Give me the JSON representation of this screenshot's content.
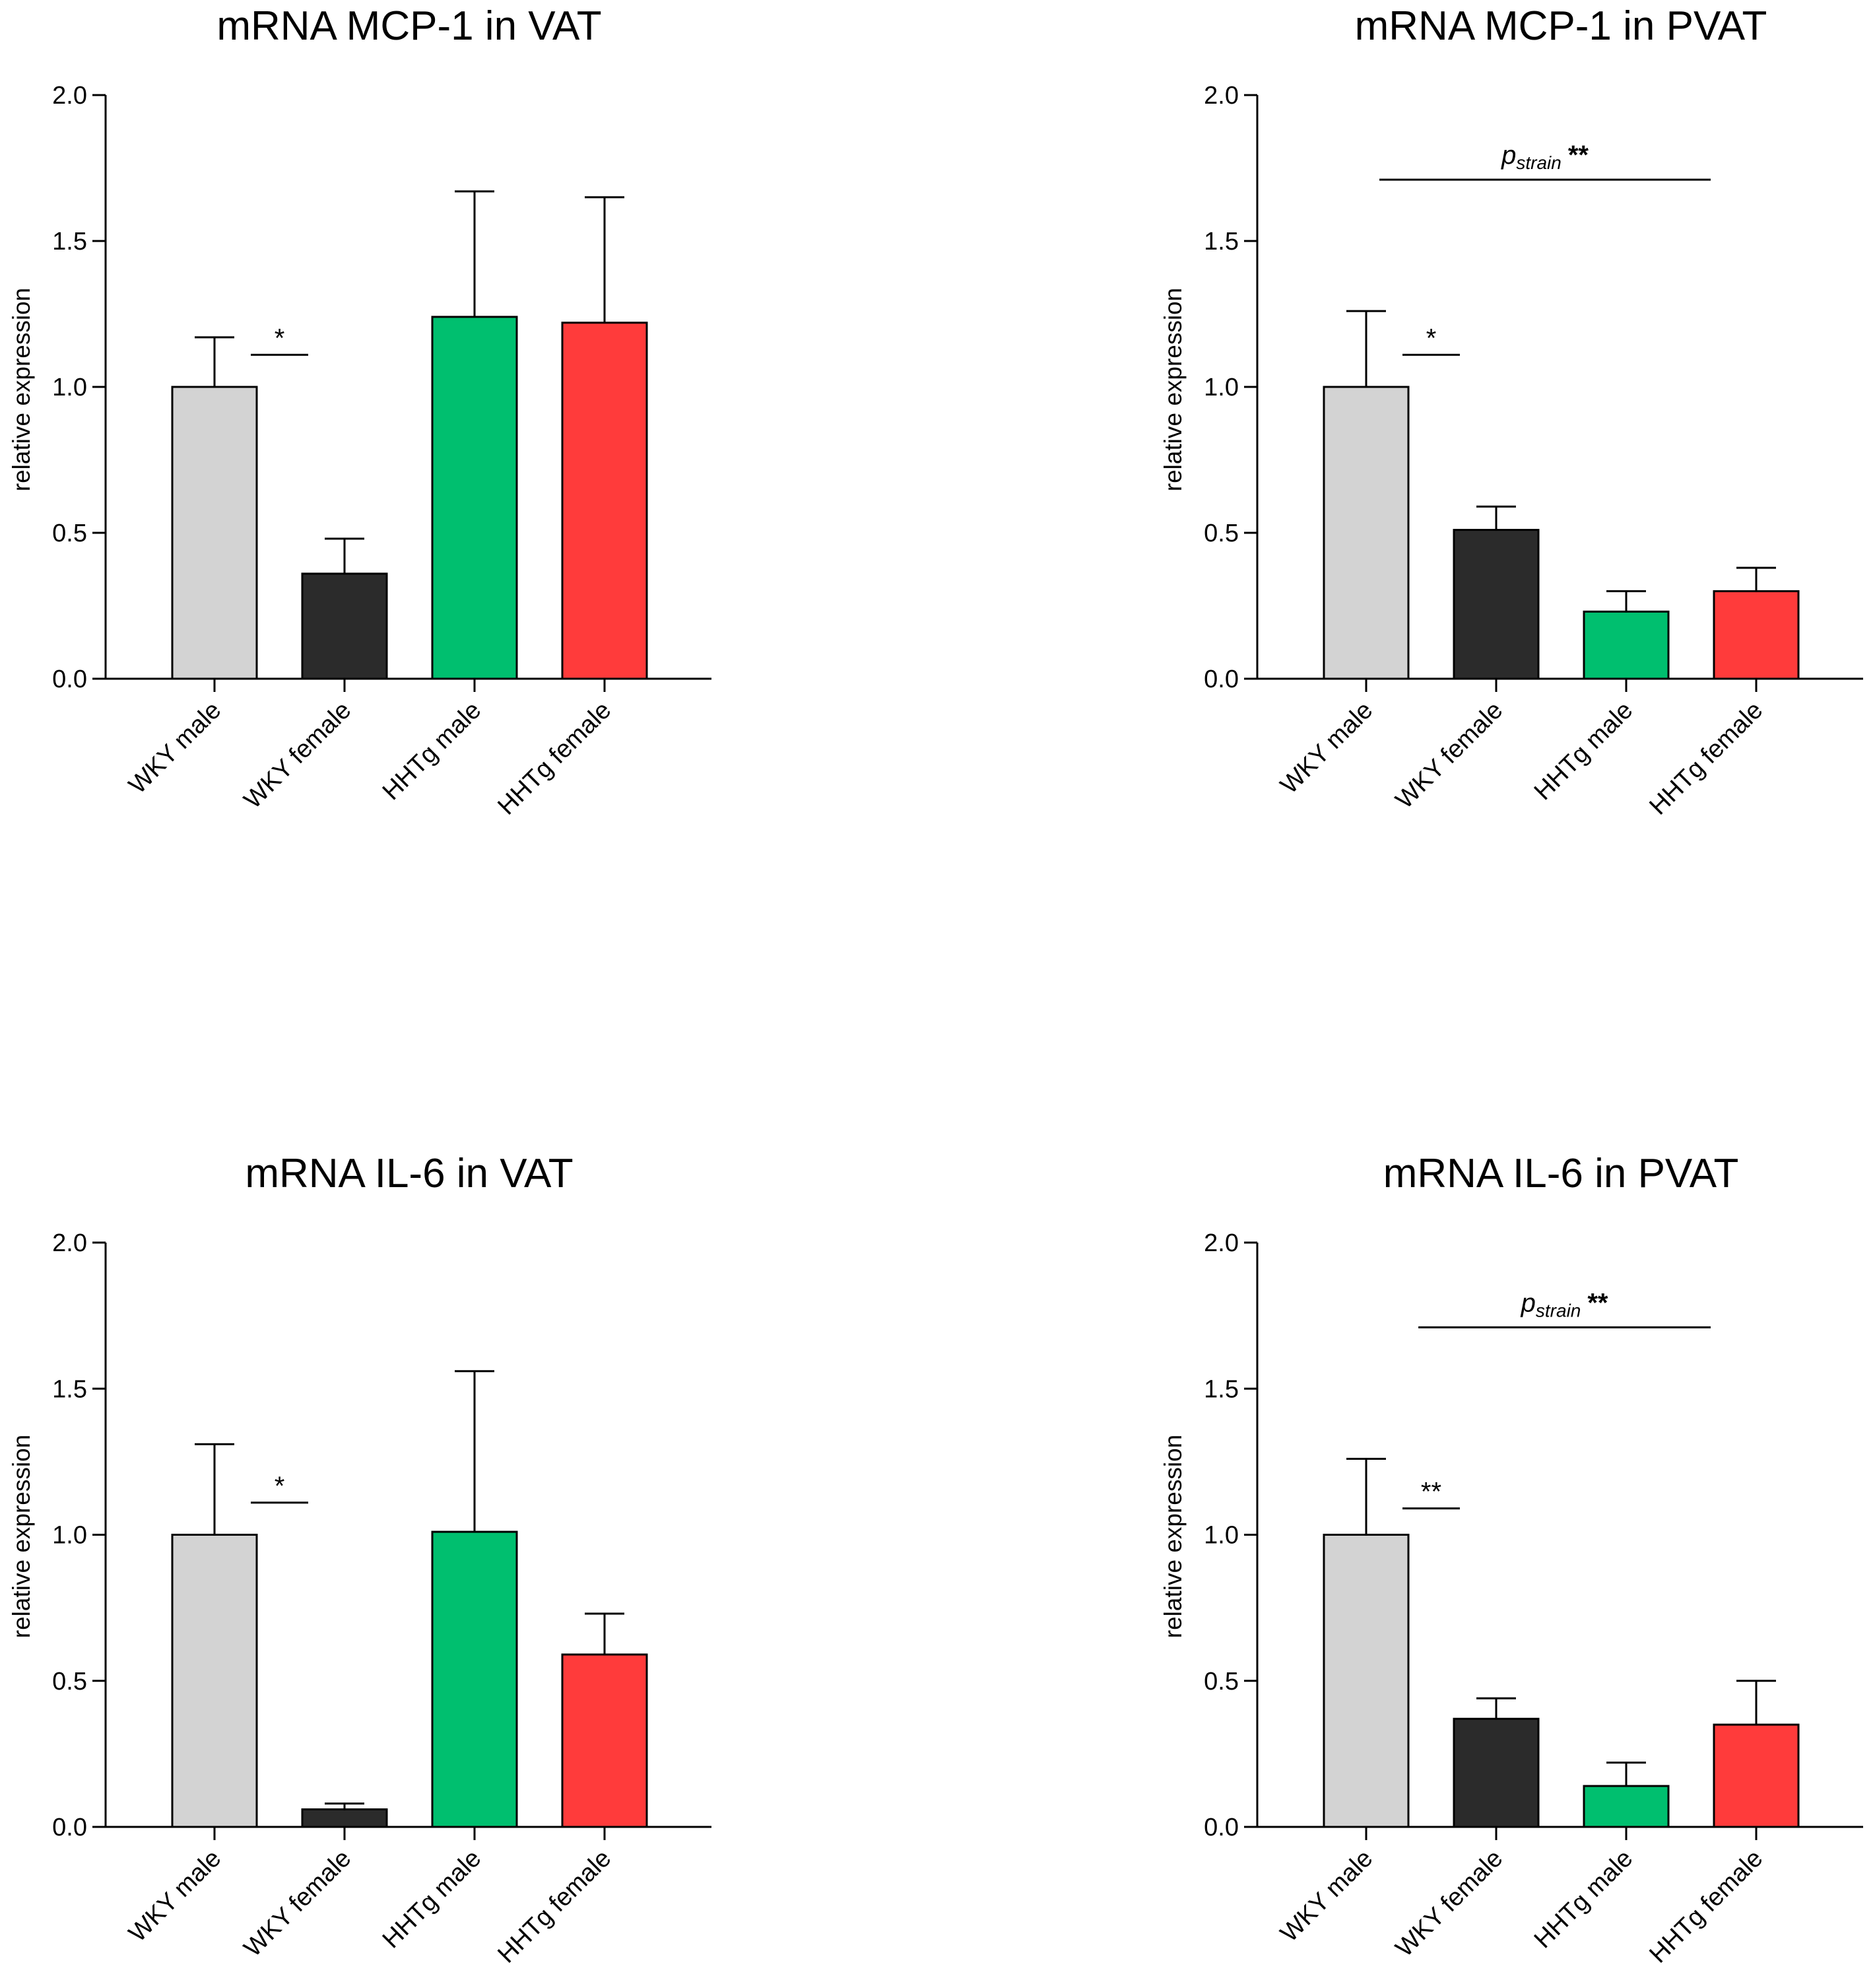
{
  "chart_data": [
    {
      "type": "bar",
      "title": "mRNA MCP-1 in VAT",
      "ylabel": "relative expression",
      "xlabel": "",
      "ylim": [
        0,
        2.0
      ],
      "yticks": [
        "0.0",
        "0.5",
        "1.0",
        "1.5",
        "2.0"
      ],
      "categories": [
        "WKY male",
        "WKY female",
        "HHTg male",
        "HHTg female"
      ],
      "values": [
        1.0,
        0.36,
        1.24,
        1.22
      ],
      "errors": [
        0.17,
        0.12,
        0.43,
        0.43
      ],
      "colors": [
        "#d3d3d3",
        "#2b2b2b",
        "#00bf6f",
        "#ff3b3b"
      ],
      "significance": [
        {
          "from": 0,
          "to": 1,
          "y": 1.11,
          "label": "*"
        }
      ],
      "strain_annotation": null
    },
    {
      "type": "bar",
      "title": "mRNA MCP-1 in PVAT",
      "ylabel": "relative expression",
      "xlabel": "",
      "ylim": [
        0,
        2.0
      ],
      "yticks": [
        "0.0",
        "0.5",
        "1.0",
        "1.5",
        "2.0"
      ],
      "categories": [
        "WKY male",
        "WKY female",
        "HHTg male",
        "HHTg female"
      ],
      "values": [
        1.0,
        0.51,
        0.23,
        0.3
      ],
      "errors": [
        0.26,
        0.08,
        0.07,
        0.08
      ],
      "colors": [
        "#d3d3d3",
        "#2b2b2b",
        "#00bf6f",
        "#ff3b3b"
      ],
      "significance": [
        {
          "from": 0,
          "to": 1,
          "y": 1.11,
          "label": "*"
        }
      ],
      "strain_annotation": {
        "p": "p",
        "sub": "strain",
        "stars": "**",
        "from": 0,
        "to": 2.65,
        "y": 1.71
      }
    },
    {
      "type": "bar",
      "title": "mRNA IL-6 in VAT",
      "ylabel": "relative expression",
      "xlabel": "",
      "ylim": [
        0,
        2.0
      ],
      "yticks": [
        "0.0",
        "0.5",
        "1.0",
        "1.5",
        "2.0"
      ],
      "categories": [
        "WKY male",
        "WKY female",
        "HHTg male",
        "HHTg female"
      ],
      "values": [
        1.0,
        0.06,
        1.01,
        0.59
      ],
      "errors": [
        0.31,
        0.02,
        0.55,
        0.14
      ],
      "colors": [
        "#d3d3d3",
        "#2b2b2b",
        "#00bf6f",
        "#ff3b3b"
      ],
      "significance": [
        {
          "from": 0,
          "to": 1,
          "y": 1.11,
          "label": "*"
        }
      ],
      "strain_annotation": null
    },
    {
      "type": "bar",
      "title": "mRNA IL-6 in PVAT",
      "ylabel": "relative expression",
      "xlabel": "",
      "ylim": [
        0,
        2.0
      ],
      "yticks": [
        "0.0",
        "0.5",
        "1.0",
        "1.5",
        "2.0"
      ],
      "categories": [
        "WKY male",
        "WKY female",
        "HHTg male",
        "HHTg female"
      ],
      "values": [
        1.0,
        0.37,
        0.14,
        0.35
      ],
      "errors": [
        0.26,
        0.07,
        0.08,
        0.15
      ],
      "colors": [
        "#d3d3d3",
        "#2b2b2b",
        "#00bf6f",
        "#ff3b3b"
      ],
      "significance": [
        {
          "from": 0,
          "to": 1,
          "y": 1.09,
          "label": "**"
        }
      ],
      "strain_annotation": {
        "p": "p",
        "sub": "strain",
        "stars": "**",
        "from": 0.3,
        "to": 2.65,
        "y": 1.71
      }
    }
  ]
}
